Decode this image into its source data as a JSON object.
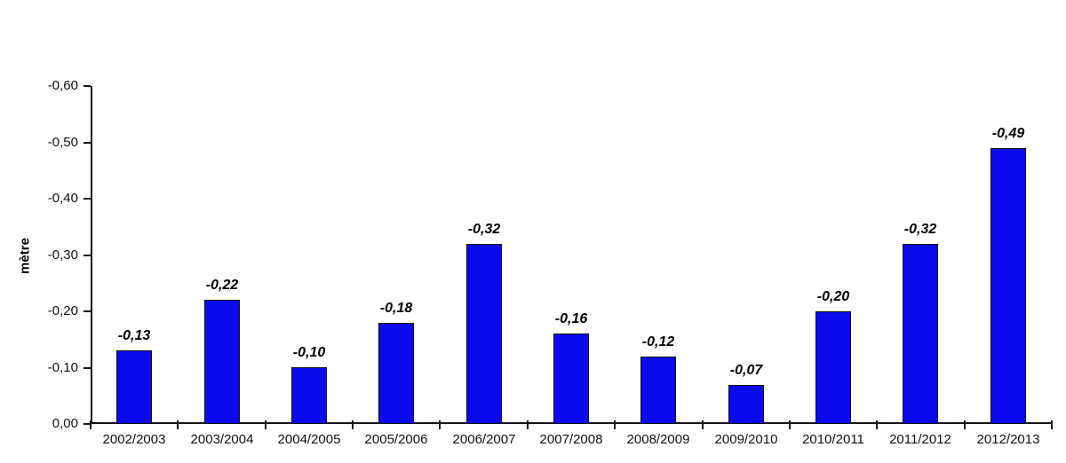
{
  "chart_data": {
    "type": "bar",
    "categories": [
      "2002/2003",
      "2003/2004",
      "2004/2005",
      "2005/2006",
      "2006/2007",
      "2007/2008",
      "2008/2009",
      "2009/2010",
      "2010/2011",
      "2011/2012",
      "2012/2013"
    ],
    "values": [
      -0.13,
      -0.22,
      -0.1,
      -0.18,
      -0.32,
      -0.16,
      -0.12,
      -0.07,
      -0.2,
      -0.32,
      -0.49
    ],
    "value_labels": [
      "-0,13",
      "-0,22",
      "-0,10",
      "-0,18",
      "-0,32",
      "-0,16",
      "-0,12",
      "-0,07",
      "-0,20",
      "-0,32",
      "-0,49"
    ],
    "title": "",
    "xlabel": "",
    "ylabel": "mètre",
    "ylim": [
      0.0,
      -0.6
    ],
    "ytick_labels": [
      "-0,60",
      "-0,50",
      "-0,40",
      "-0,30",
      "-0,20",
      "-0,10",
      "0,00"
    ],
    "ytick_values": [
      -0.6,
      -0.5,
      -0.4,
      -0.3,
      -0.2,
      -0.1,
      0.0
    ],
    "axis_inverted": true,
    "grid": false,
    "legend": "none",
    "bar_color": "#0a0aec",
    "bar_border_color": "#101010",
    "axis_color": "#161616",
    "background_color": "#ffffff"
  }
}
